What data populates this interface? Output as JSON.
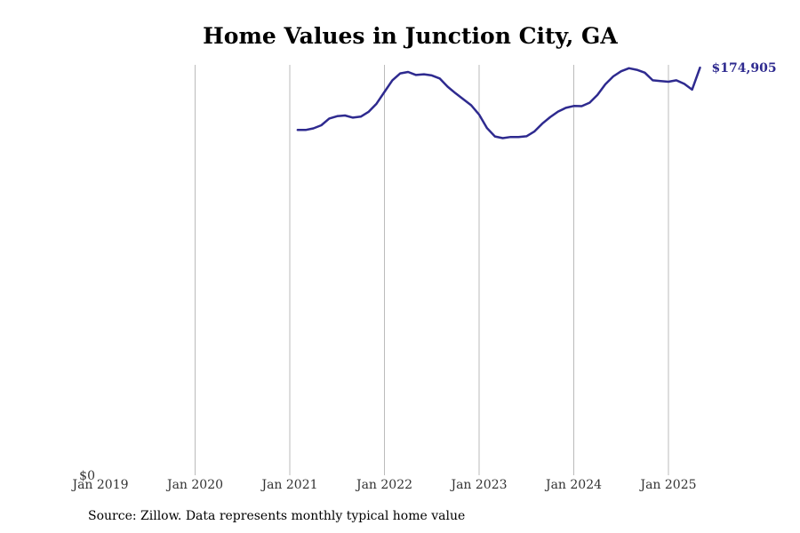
{
  "title": "Home Values in Junction City, GA",
  "source": "Source: Zillow. Data represents monthly typical home value",
  "colors": {
    "line": "#2e2a8f",
    "grid": "#bbbbbb",
    "background": "#ffffff"
  },
  "chart_data": {
    "type": "line",
    "title": "Home Values in Junction City, GA",
    "xlabel": "",
    "ylabel": "",
    "x_ticks": [
      "Jan 2019",
      "Jan 2020",
      "Jan 2021",
      "Jan 2022",
      "Jan 2023",
      "Jan 2024",
      "Jan 2025"
    ],
    "y_ticks": [
      {
        "value": 0,
        "label": "$0"
      }
    ],
    "xlim": [
      "2019-01",
      "2025-06"
    ],
    "ylim": [
      0,
      175000
    ],
    "grid": {
      "vertical": true,
      "horizontal": false
    },
    "legend": "none",
    "end_label": "$174,905",
    "series": [
      {
        "x": [
          "2021-02",
          "2021-03",
          "2021-04",
          "2021-05",
          "2021-06",
          "2021-07",
          "2021-08",
          "2021-09",
          "2021-10",
          "2021-11",
          "2021-12",
          "2022-01",
          "2022-02",
          "2022-03",
          "2022-04",
          "2022-05",
          "2022-06",
          "2022-07",
          "2022-08",
          "2022-09",
          "2022-10",
          "2022-11",
          "2022-12",
          "2023-01",
          "2023-02",
          "2023-03",
          "2023-04",
          "2023-05",
          "2023-06",
          "2023-07",
          "2023-08",
          "2023-09",
          "2023-10",
          "2023-11",
          "2023-12",
          "2024-01",
          "2024-02",
          "2024-03",
          "2024-04",
          "2024-05",
          "2024-06",
          "2024-07",
          "2024-08",
          "2024-09",
          "2024-10",
          "2024-11",
          "2024-12",
          "2025-01",
          "2025-02",
          "2025-03",
          "2025-04",
          "2025-05"
        ],
        "values": [
          148200,
          148200,
          148900,
          150200,
          153100,
          154100,
          154400,
          153500,
          153900,
          156000,
          159500,
          164500,
          169500,
          172500,
          173100,
          171800,
          172100,
          171600,
          170300,
          166800,
          164000,
          161400,
          158800,
          154800,
          149000,
          145400,
          144700,
          145200,
          145200,
          145500,
          147500,
          150900,
          153700,
          156100,
          157700,
          158500,
          158400,
          159900,
          163200,
          167800,
          171200,
          173400,
          174700,
          174000,
          172800,
          169500,
          169200,
          168900,
          169500,
          168000,
          165500,
          174905
        ]
      }
    ]
  }
}
